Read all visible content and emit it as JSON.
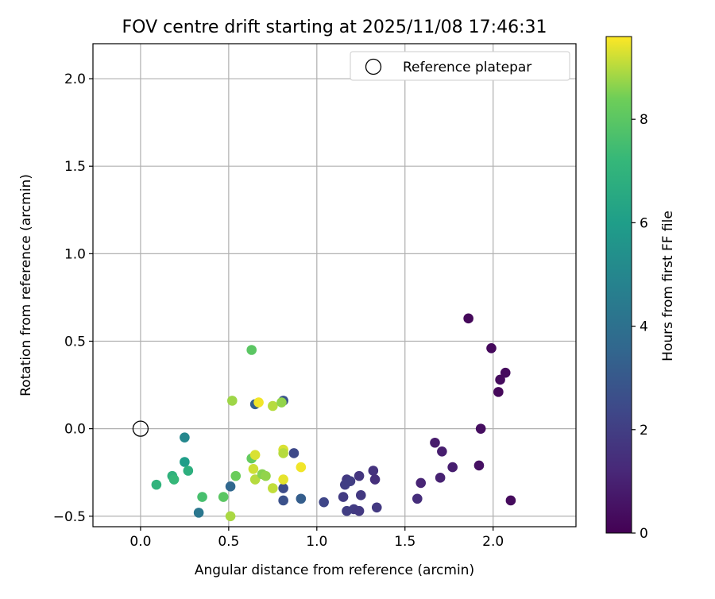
{
  "chart_data": {
    "type": "scatter",
    "title": "FOV centre drift starting at 2025/11/08 17:46:31",
    "xlabel": "Angular distance from reference (arcmin)",
    "ylabel": "Rotation from reference (arcmin)",
    "xlim": [
      -0.27,
      2.47
    ],
    "ylim": [
      -0.56,
      2.2
    ],
    "xticks": [
      0.0,
      0.5,
      1.0,
      1.5,
      2.0
    ],
    "xtick_labels": [
      "0.0",
      "0.5",
      "1.0",
      "1.5",
      "2.0"
    ],
    "yticks": [
      -0.5,
      0.0,
      0.5,
      1.0,
      1.5,
      2.0
    ],
    "ytick_labels": [
      "−0.5",
      "0.0",
      "0.5",
      "1.0",
      "1.5",
      "2.0"
    ],
    "grid": true,
    "legend": {
      "position": "top-right",
      "entries": [
        "Reference platepar"
      ]
    },
    "reference_point": {
      "x": 0.0,
      "y": 0.0,
      "marker": "open-circle"
    },
    "colorbar": {
      "label": "Hours from first FF file",
      "range": [
        0,
        9.6
      ],
      "ticks": [
        0,
        2,
        4,
        6,
        8
      ],
      "tick_labels": [
        "0",
        "2",
        "4",
        "6",
        "8"
      ],
      "colormap": "viridis"
    },
    "points": [
      {
        "x": 1.86,
        "y": 0.63,
        "hours": 0.2
      },
      {
        "x": 1.99,
        "y": 0.46,
        "hours": 0.25
      },
      {
        "x": 2.07,
        "y": 0.32,
        "hours": 0.3
      },
      {
        "x": 2.04,
        "y": 0.28,
        "hours": 0.3
      },
      {
        "x": 2.03,
        "y": 0.21,
        "hours": 0.2
      },
      {
        "x": 1.93,
        "y": 0.0,
        "hours": 0.4
      },
      {
        "x": 1.92,
        "y": -0.21,
        "hours": 0.5
      },
      {
        "x": 2.1,
        "y": -0.41,
        "hours": 0.3
      },
      {
        "x": 1.67,
        "y": -0.08,
        "hours": 0.8
      },
      {
        "x": 1.71,
        "y": -0.13,
        "hours": 0.9
      },
      {
        "x": 1.77,
        "y": -0.22,
        "hours": 0.9
      },
      {
        "x": 1.7,
        "y": -0.28,
        "hours": 1.0
      },
      {
        "x": 1.59,
        "y": -0.31,
        "hours": 1.1
      },
      {
        "x": 1.57,
        "y": -0.4,
        "hours": 1.4
      },
      {
        "x": 1.32,
        "y": -0.24,
        "hours": 1.6
      },
      {
        "x": 1.33,
        "y": -0.29,
        "hours": 1.5
      },
      {
        "x": 1.24,
        "y": -0.27,
        "hours": 1.7
      },
      {
        "x": 1.17,
        "y": -0.29,
        "hours": 1.8
      },
      {
        "x": 1.19,
        "y": -0.3,
        "hours": 2.0
      },
      {
        "x": 1.16,
        "y": -0.32,
        "hours": 2.0
      },
      {
        "x": 1.15,
        "y": -0.39,
        "hours": 1.9
      },
      {
        "x": 1.25,
        "y": -0.38,
        "hours": 1.8
      },
      {
        "x": 1.34,
        "y": -0.45,
        "hours": 1.8
      },
      {
        "x": 1.21,
        "y": -0.46,
        "hours": 1.9
      },
      {
        "x": 1.24,
        "y": -0.47,
        "hours": 1.8
      },
      {
        "x": 1.17,
        "y": -0.47,
        "hours": 2.0
      },
      {
        "x": 1.04,
        "y": -0.42,
        "hours": 2.3
      },
      {
        "x": 0.87,
        "y": -0.14,
        "hours": 2.4
      },
      {
        "x": 0.81,
        "y": -0.34,
        "hours": 2.5
      },
      {
        "x": 0.81,
        "y": -0.41,
        "hours": 2.7
      },
      {
        "x": 0.91,
        "y": -0.4,
        "hours": 3.2
      },
      {
        "x": 0.81,
        "y": 0.16,
        "hours": 2.8
      },
      {
        "x": 0.65,
        "y": 0.14,
        "hours": 3.3
      },
      {
        "x": 0.51,
        "y": -0.33,
        "hours": 3.6
      },
      {
        "x": 0.33,
        "y": -0.48,
        "hours": 4.3
      },
      {
        "x": 0.25,
        "y": -0.05,
        "hours": 5.0
      },
      {
        "x": 0.25,
        "y": -0.19,
        "hours": 6.0
      },
      {
        "x": 0.27,
        "y": -0.24,
        "hours": 6.8
      },
      {
        "x": 0.18,
        "y": -0.27,
        "hours": 6.9
      },
      {
        "x": 0.19,
        "y": -0.29,
        "hours": 7.2
      },
      {
        "x": 0.09,
        "y": -0.32,
        "hours": 7.0
      },
      {
        "x": 0.35,
        "y": -0.39,
        "hours": 7.6
      },
      {
        "x": 0.47,
        "y": -0.39,
        "hours": 8.0
      },
      {
        "x": 0.51,
        "y": -0.5,
        "hours": 8.9
      },
      {
        "x": 0.54,
        "y": -0.27,
        "hours": 8.3
      },
      {
        "x": 0.63,
        "y": -0.17,
        "hours": 8.2
      },
      {
        "x": 0.63,
        "y": 0.45,
        "hours": 8.0
      },
      {
        "x": 0.52,
        "y": 0.16,
        "hours": 8.8
      },
      {
        "x": 0.64,
        "y": -0.23,
        "hours": 9.2
      },
      {
        "x": 0.65,
        "y": -0.15,
        "hours": 9.3
      },
      {
        "x": 0.65,
        "y": -0.29,
        "hours": 9.0
      },
      {
        "x": 0.69,
        "y": -0.26,
        "hours": 8.6
      },
      {
        "x": 0.71,
        "y": -0.27,
        "hours": 8.7
      },
      {
        "x": 0.67,
        "y": 0.15,
        "hours": 9.5
      },
      {
        "x": 0.75,
        "y": 0.13,
        "hours": 9.0
      },
      {
        "x": 0.8,
        "y": 0.15,
        "hours": 8.7
      },
      {
        "x": 0.75,
        "y": -0.34,
        "hours": 9.1
      },
      {
        "x": 0.81,
        "y": -0.12,
        "hours": 9.3
      },
      {
        "x": 0.81,
        "y": -0.14,
        "hours": 9.0
      },
      {
        "x": 0.81,
        "y": -0.29,
        "hours": 9.4
      },
      {
        "x": 0.91,
        "y": -0.22,
        "hours": 9.5
      }
    ]
  }
}
